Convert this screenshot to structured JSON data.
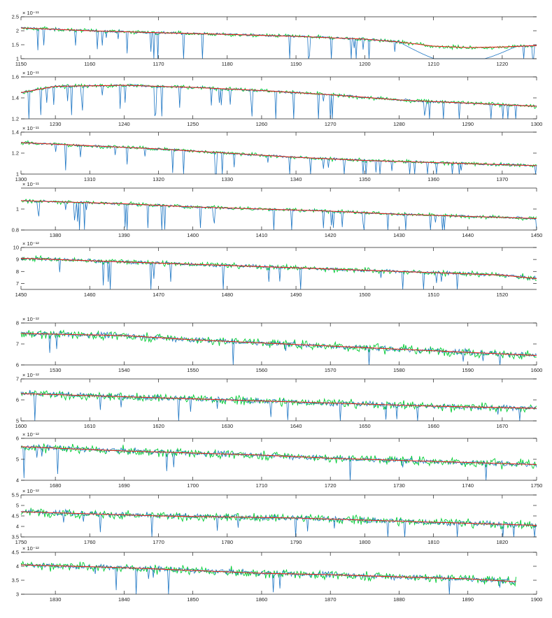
{
  "figure": {
    "colors": {
      "flux": "#1f77c4",
      "noise": "#00cc33",
      "continuum": "#e8221b",
      "axis": "#222222"
    }
  },
  "chart_data": [
    {
      "type": "line",
      "title": "",
      "xlabel": "",
      "ylabel": "",
      "xlim": [
        1150,
        1225
      ],
      "ylim": [
        1.0,
        2.5
      ],
      "exponent": "× 10⁻¹¹",
      "xticks": [
        "1150",
        "1160",
        "1170",
        "1180",
        "1190",
        "1200",
        "1210",
        "1220"
      ],
      "yticks": [
        "1",
        "1.5",
        "2",
        "2.5"
      ],
      "continuum": {
        "x": [
          1150,
          1160,
          1170,
          1180,
          1190,
          1200,
          1205,
          1210,
          1215,
          1220,
          1225
        ],
        "y": [
          2.1,
          2.0,
          1.93,
          1.87,
          1.8,
          1.7,
          1.6,
          1.45,
          1.4,
          1.42,
          1.47
        ]
      },
      "series": [
        {
          "values_note": "",
          "x": [
            1150,
            1160,
            1170,
            1180,
            1190,
            1200,
            1205,
            1210,
            1215,
            1220,
            1225
          ],
          "y": [
            2.1,
            2.0,
            1.93,
            1.87,
            1.8,
            1.7,
            1.55,
            1.2,
            0.9,
            1.25,
            1.47
          ]
        }
      ]
    },
    {
      "type": "line",
      "title": "",
      "xlabel": "",
      "ylabel": "",
      "xlim": [
        1225,
        1300
      ],
      "ylim": [
        1.2,
        1.6
      ],
      "exponent": "× 10⁻¹¹",
      "xticks": [
        "1230",
        "1240",
        "1250",
        "1260",
        "1270",
        "1280",
        "1290",
        "1300"
      ],
      "yticks": [
        "1.2",
        "1.4",
        "1.6"
      ],
      "continuum": {
        "x": [
          1225,
          1230,
          1240,
          1250,
          1260,
          1270,
          1280,
          1290,
          1300
        ],
        "y": [
          1.45,
          1.51,
          1.52,
          1.5,
          1.47,
          1.43,
          1.38,
          1.35,
          1.32
        ]
      }
    },
    {
      "type": "line",
      "title": "",
      "xlabel": "",
      "ylabel": "",
      "xlim": [
        1300,
        1375
      ],
      "ylim": [
        1.0,
        1.4
      ],
      "exponent": "× 10⁻¹¹",
      "xticks": [
        "1300",
        "1310",
        "1320",
        "1330",
        "1340",
        "1350",
        "1360",
        "1370"
      ],
      "yticks": [
        "1",
        "1.2",
        "1.4"
      ],
      "continuum": {
        "x": [
          1300,
          1310,
          1320,
          1330,
          1340,
          1350,
          1360,
          1375
        ],
        "y": [
          1.3,
          1.27,
          1.24,
          1.2,
          1.16,
          1.13,
          1.11,
          1.08
        ]
      }
    },
    {
      "type": "line",
      "title": "",
      "xlabel": "",
      "ylabel": "",
      "xlim": [
        1375,
        1450
      ],
      "ylim": [
        0.8,
        1.2
      ],
      "exponent": "× 10⁻¹¹",
      "xticks": [
        "1380",
        "1390",
        "1400",
        "1410",
        "1420",
        "1430",
        "1440",
        "1450"
      ],
      "yticks": [
        "0.8",
        "1"
      ],
      "continuum": {
        "x": [
          1375,
          1390,
          1400,
          1410,
          1420,
          1430,
          1440,
          1450
        ],
        "y": [
          1.08,
          1.05,
          1.02,
          1.0,
          0.98,
          0.95,
          0.93,
          0.91
        ]
      }
    },
    {
      "type": "line",
      "title": "",
      "xlabel": "",
      "ylabel": "",
      "xlim": [
        1450,
        1525
      ],
      "ylim": [
        6.5,
        10
      ],
      "exponent": "× 10⁻¹²",
      "xticks": [
        "1450",
        "1460",
        "1470",
        "1480",
        "1490",
        "1500",
        "1510",
        "1520"
      ],
      "yticks": [
        "7",
        "8",
        "9",
        "10"
      ],
      "continuum": {
        "x": [
          1450,
          1460,
          1470,
          1480,
          1490,
          1500,
          1510,
          1520,
          1525
        ],
        "y": [
          9.1,
          8.9,
          8.7,
          8.5,
          8.3,
          8.1,
          7.9,
          7.7,
          7.4
        ]
      }
    },
    {
      "type": "line",
      "title": "",
      "xlabel": "",
      "ylabel": "",
      "xlim": [
        1525,
        1600
      ],
      "ylim": [
        6,
        8
      ],
      "exponent": "× 10⁻¹²",
      "xticks": [
        "1530",
        "1540",
        "1550",
        "1560",
        "1570",
        "1580",
        "1590",
        "1600"
      ],
      "yticks": [
        "6",
        "7",
        "8"
      ],
      "continuum": {
        "x": [
          1525,
          1540,
          1550,
          1560,
          1570,
          1580,
          1590,
          1600
        ],
        "y": [
          7.5,
          7.4,
          7.2,
          7.05,
          6.9,
          6.75,
          6.6,
          6.45
        ]
      }
    },
    {
      "type": "line",
      "title": "",
      "xlabel": "",
      "ylabel": "",
      "xlim": [
        1600,
        1675
      ],
      "ylim": [
        5,
        7
      ],
      "exponent": "× 10⁻¹²",
      "xticks": [
        "1600",
        "1610",
        "1620",
        "1630",
        "1640",
        "1650",
        "1660",
        "1670"
      ],
      "yticks": [
        "5",
        "6",
        "7"
      ],
      "continuum": {
        "x": [
          1600,
          1610,
          1620,
          1630,
          1640,
          1650,
          1660,
          1675
        ],
        "y": [
          6.3,
          6.2,
          6.1,
          6.0,
          5.9,
          5.8,
          5.7,
          5.6
        ]
      }
    },
    {
      "type": "line",
      "title": "",
      "xlabel": "",
      "ylabel": "",
      "xlim": [
        1675,
        1750
      ],
      "ylim": [
        4,
        6
      ],
      "exponent": "× 10⁻¹²",
      "xticks": [
        "1680",
        "1690",
        "1700",
        "1710",
        "1720",
        "1730",
        "1740",
        "1750"
      ],
      "yticks": [
        "4",
        "5",
        "6"
      ],
      "continuum": {
        "x": [
          1675,
          1690,
          1700,
          1710,
          1720,
          1730,
          1740,
          1750
        ],
        "y": [
          5.6,
          5.4,
          5.3,
          5.2,
          5.05,
          4.95,
          4.85,
          4.75
        ]
      }
    },
    {
      "type": "line",
      "title": "",
      "xlabel": "",
      "ylabel": "",
      "xlim": [
        1750,
        1825
      ],
      "ylim": [
        3.5,
        5.5
      ],
      "exponent": "× 10⁻¹²",
      "xticks": [
        "1750",
        "1760",
        "1770",
        "1780",
        "1790",
        "1800",
        "1810",
        "1820"
      ],
      "yticks": [
        "3.5",
        "4",
        "4.5",
        "5",
        "5.5"
      ],
      "continuum": {
        "x": [
          1750,
          1760,
          1770,
          1780,
          1790,
          1800,
          1810,
          1825
        ],
        "y": [
          4.7,
          4.6,
          4.5,
          4.45,
          4.4,
          4.3,
          4.2,
          4.05
        ]
      }
    },
    {
      "type": "line",
      "title": "",
      "xlabel": "",
      "ylabel": "",
      "xlim": [
        1825,
        1900
      ],
      "ylim": [
        3,
        4.5
      ],
      "exponent": "× 10⁻¹²",
      "xticks": [
        "1830",
        "1840",
        "1850",
        "1860",
        "1870",
        "1880",
        "1890",
        "1900"
      ],
      "yticks": [
        "3",
        "3.5",
        "4",
        "4.5"
      ],
      "continuum": {
        "x": [
          1825,
          1840,
          1850,
          1860,
          1870,
          1880,
          1890,
          1897
        ],
        "y": [
          4.05,
          3.95,
          3.85,
          3.75,
          3.7,
          3.62,
          3.55,
          3.45
        ]
      }
    }
  ]
}
